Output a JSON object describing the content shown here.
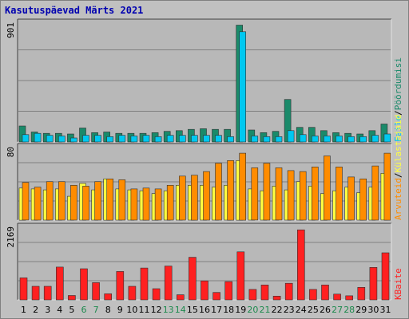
{
  "chart_data": [
    {
      "type": "bar",
      "title": "Kasutuspäevad Märts 2021",
      "y_max_label": "901",
      "legend": [
        {
          "name": "Pöördumisi",
          "color": "#1a8a6a"
        },
        {
          "name": "Faile",
          "color": "#00c8f0"
        }
      ],
      "legend_separator": "/",
      "categories": [
        "1",
        "2",
        "3",
        "4",
        "5",
        "6",
        "7",
        "8",
        "9",
        "10",
        "11",
        "12",
        "13",
        "14",
        "15",
        "16",
        "17",
        "18",
        "19",
        "20",
        "21",
        "22",
        "23",
        "24",
        "25",
        "26",
        "27",
        "28",
        "29",
        "30",
        "31"
      ],
      "series": [
        {
          "name": "Pöördumisi",
          "color": "#1a8a6a",
          "values": [
            120,
            75,
            65,
            65,
            60,
            105,
            70,
            75,
            65,
            65,
            65,
            70,
            80,
            85,
            95,
            100,
            95,
            95,
            880,
            90,
            70,
            80,
            320,
            110,
            110,
            85,
            70,
            65,
            60,
            85,
            135
          ]
        },
        {
          "name": "Faile",
          "color": "#00c8f0",
          "values": [
            55,
            65,
            50,
            45,
            30,
            50,
            50,
            40,
            50,
            45,
            50,
            40,
            50,
            50,
            50,
            50,
            50,
            40,
            830,
            45,
            40,
            40,
            85,
            55,
            45,
            45,
            45,
            40,
            40,
            50,
            60
          ]
        }
      ],
      "ylim": [
        0,
        901
      ]
    },
    {
      "type": "bar",
      "y_max_label": "80",
      "legend": [
        {
          "name": "Külastajaid",
          "color": "#ffff40"
        },
        {
          "name": "Arvuteid",
          "color": "#ff8c00"
        }
      ],
      "legend_separator": "/",
      "series": [
        {
          "name": "Külastajaid",
          "color": "#ffff40",
          "values": [
            35,
            34,
            33,
            34,
            26,
            40,
            33,
            45,
            34,
            33,
            32,
            29,
            32,
            38,
            38,
            38,
            36,
            38,
            65,
            34,
            32,
            37,
            33,
            42,
            37,
            29,
            32,
            36,
            30,
            36,
            51
          ]
        },
        {
          "name": "Arvuteid",
          "color": "#ff8c00",
          "values": [
            41,
            36,
            42,
            42,
            38,
            37,
            42,
            45,
            44,
            34,
            35,
            34,
            38,
            48,
            49,
            53,
            62,
            65,
            73,
            57,
            62,
            57,
            54,
            53,
            58,
            70,
            58,
            47,
            45,
            59,
            73
          ]
        }
      ],
      "ylim": [
        0,
        80
      ]
    },
    {
      "type": "bar",
      "y_max_label": "2169",
      "legend": [
        {
          "name": "KBaite",
          "color": "#ff2020"
        }
      ],
      "series": [
        {
          "name": "KBaite",
          "color": "#ff2020",
          "values": [
            650,
            400,
            400,
            970,
            130,
            920,
            510,
            180,
            840,
            400,
            940,
            330,
            1000,
            150,
            1260,
            560,
            220,
            540,
            1420,
            310,
            440,
            110,
            490,
            2070,
            310,
            440,
            170,
            120,
            370,
            960,
            1390
          ]
        }
      ],
      "ylim": [
        0,
        2169
      ]
    }
  ],
  "x_label_colors": {
    "weekday": "#000000",
    "weekend": "#1e8a4e"
  },
  "weekend_days": [
    "6",
    "7",
    "13",
    "14",
    "20",
    "21",
    "27",
    "28"
  ]
}
